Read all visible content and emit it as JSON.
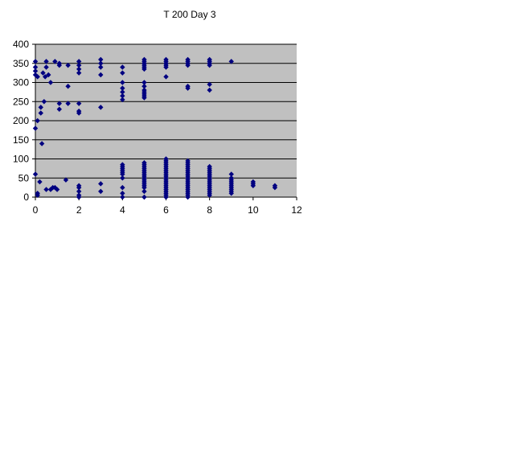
{
  "chart_data": {
    "type": "scatter",
    "title": "T 200 Day 3",
    "xlabel": "",
    "ylabel": "",
    "xlim": [
      0,
      12
    ],
    "ylim": [
      0,
      400
    ],
    "x_ticks": [
      "0",
      "2",
      "4",
      "6",
      "8",
      "10",
      "12"
    ],
    "y_ticks": [
      "0",
      "50",
      "100",
      "150",
      "200",
      "250",
      "300",
      "350",
      "400"
    ],
    "grid": "horizontal",
    "legend": "none",
    "colors": {
      "plot_area": "#c0c0c0",
      "marker": "#000080",
      "gridline": "#000000"
    },
    "series": [
      {
        "points": [
          [
            0,
            355
          ],
          [
            0,
            340
          ],
          [
            0,
            330
          ],
          [
            0,
            320
          ],
          [
            0,
            180
          ],
          [
            0,
            60
          ],
          [
            0.1,
            315
          ],
          [
            0.1,
            200
          ],
          [
            0.1,
            10
          ],
          [
            0.1,
            5
          ],
          [
            0.2,
            40
          ],
          [
            0.25,
            235
          ],
          [
            0.25,
            220
          ],
          [
            0.3,
            140
          ],
          [
            0.35,
            325
          ],
          [
            0.4,
            250
          ],
          [
            0.45,
            315
          ],
          [
            0.5,
            355
          ],
          [
            0.5,
            340
          ],
          [
            0.5,
            20
          ],
          [
            0.6,
            320
          ],
          [
            0.7,
            300
          ],
          [
            0.7,
            20
          ],
          [
            0.8,
            25
          ],
          [
            0.9,
            355
          ],
          [
            0.9,
            25
          ],
          [
            1.0,
            20
          ],
          [
            1.1,
            350
          ],
          [
            1.1,
            345
          ],
          [
            1.1,
            245
          ],
          [
            1.1,
            230
          ],
          [
            1.4,
            45
          ],
          [
            1.5,
            345
          ],
          [
            1.5,
            290
          ],
          [
            1.5,
            245
          ],
          [
            2,
            355
          ],
          [
            2,
            345
          ],
          [
            2,
            335
          ],
          [
            2,
            325
          ],
          [
            2,
            245
          ],
          [
            2,
            225
          ],
          [
            2,
            220
          ],
          [
            2,
            30
          ],
          [
            2,
            25
          ],
          [
            2,
            15
          ],
          [
            2,
            5
          ],
          [
            2,
            0
          ],
          [
            3,
            360
          ],
          [
            3,
            350
          ],
          [
            3,
            340
          ],
          [
            3,
            320
          ],
          [
            3,
            235
          ],
          [
            3,
            35
          ],
          [
            3,
            15
          ],
          [
            4,
            340
          ],
          [
            4,
            325
          ],
          [
            4,
            300
          ],
          [
            4,
            285
          ],
          [
            4,
            275
          ],
          [
            4,
            265
          ],
          [
            4,
            255
          ],
          [
            4,
            85
          ],
          [
            4,
            80
          ],
          [
            4,
            75
          ],
          [
            4,
            70
          ],
          [
            4,
            65
          ],
          [
            4,
            60
          ],
          [
            4,
            50
          ],
          [
            4,
            25
          ],
          [
            4,
            10
          ],
          [
            4,
            0
          ],
          [
            5,
            360
          ],
          [
            5,
            355
          ],
          [
            5,
            350
          ],
          [
            5,
            345
          ],
          [
            5,
            340
          ],
          [
            5,
            335
          ],
          [
            5,
            300
          ],
          [
            5,
            290
          ],
          [
            5,
            280
          ],
          [
            5,
            275
          ],
          [
            5,
            270
          ],
          [
            5,
            265
          ],
          [
            5,
            260
          ],
          [
            5,
            90
          ],
          [
            5,
            85
          ],
          [
            5,
            80
          ],
          [
            5,
            75
          ],
          [
            5,
            70
          ],
          [
            5,
            65
          ],
          [
            5,
            60
          ],
          [
            5,
            55
          ],
          [
            5,
            50
          ],
          [
            5,
            45
          ],
          [
            5,
            40
          ],
          [
            5,
            35
          ],
          [
            5,
            30
          ],
          [
            5,
            25
          ],
          [
            5,
            15
          ],
          [
            5,
            0
          ],
          [
            6,
            360
          ],
          [
            6,
            355
          ],
          [
            6,
            350
          ],
          [
            6,
            345
          ],
          [
            6,
            340
          ],
          [
            6,
            315
          ],
          [
            6,
            100
          ],
          [
            6,
            95
          ],
          [
            6,
            90
          ],
          [
            6,
            85
          ],
          [
            6,
            80
          ],
          [
            6,
            75
          ],
          [
            6,
            70
          ],
          [
            6,
            65
          ],
          [
            6,
            60
          ],
          [
            6,
            55
          ],
          [
            6,
            50
          ],
          [
            6,
            45
          ],
          [
            6,
            40
          ],
          [
            6,
            35
          ],
          [
            6,
            30
          ],
          [
            6,
            25
          ],
          [
            6,
            20
          ],
          [
            6,
            15
          ],
          [
            6,
            10
          ],
          [
            6,
            5
          ],
          [
            6,
            0
          ],
          [
            7,
            360
          ],
          [
            7,
            355
          ],
          [
            7,
            350
          ],
          [
            7,
            345
          ],
          [
            7,
            290
          ],
          [
            7,
            285
          ],
          [
            7,
            95
          ],
          [
            7,
            90
          ],
          [
            7,
            85
          ],
          [
            7,
            80
          ],
          [
            7,
            75
          ],
          [
            7,
            70
          ],
          [
            7,
            65
          ],
          [
            7,
            60
          ],
          [
            7,
            55
          ],
          [
            7,
            50
          ],
          [
            7,
            45
          ],
          [
            7,
            40
          ],
          [
            7,
            35
          ],
          [
            7,
            30
          ],
          [
            7,
            25
          ],
          [
            7,
            20
          ],
          [
            7,
            15
          ],
          [
            7,
            10
          ],
          [
            7,
            5
          ],
          [
            7,
            0
          ],
          [
            8,
            360
          ],
          [
            8,
            355
          ],
          [
            8,
            350
          ],
          [
            8,
            345
          ],
          [
            8,
            295
          ],
          [
            8,
            280
          ],
          [
            8,
            80
          ],
          [
            8,
            75
          ],
          [
            8,
            70
          ],
          [
            8,
            65
          ],
          [
            8,
            60
          ],
          [
            8,
            55
          ],
          [
            8,
            50
          ],
          [
            8,
            45
          ],
          [
            8,
            40
          ],
          [
            8,
            35
          ],
          [
            8,
            30
          ],
          [
            8,
            25
          ],
          [
            8,
            20
          ],
          [
            8,
            15
          ],
          [
            8,
            10
          ],
          [
            8,
            5
          ],
          [
            9,
            355
          ],
          [
            9,
            60
          ],
          [
            9,
            50
          ],
          [
            9,
            45
          ],
          [
            9,
            40
          ],
          [
            9,
            35
          ],
          [
            9,
            30
          ],
          [
            9,
            25
          ],
          [
            9,
            20
          ],
          [
            9,
            15
          ],
          [
            9,
            10
          ],
          [
            10,
            40
          ],
          [
            10,
            35
          ],
          [
            10,
            30
          ],
          [
            11,
            30
          ],
          [
            11,
            25
          ]
        ]
      }
    ]
  }
}
